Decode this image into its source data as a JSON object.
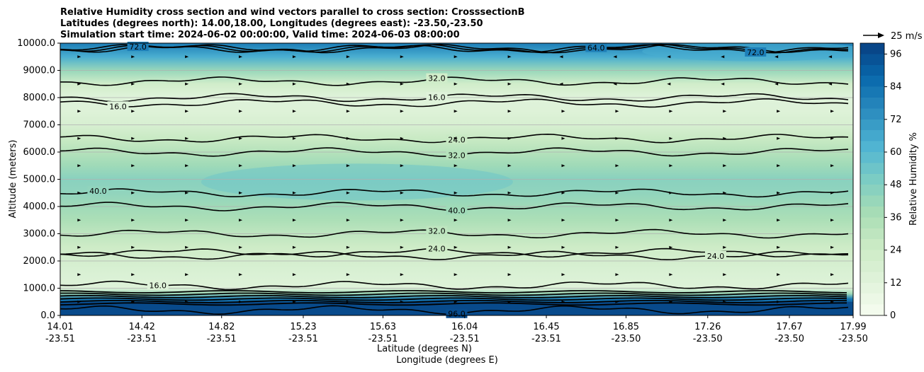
{
  "chart_data": {
    "type": "heatmap",
    "title_lines": [
      "Relative Humidity cross section and wind vectors parallel to cross section: CrosssectionB",
      "Latitudes (degrees north): 14.00,18.00, Longitudes (degrees east): -23.50,-23.50",
      "Simulation start time: 2024-06-02 00:00:00, Valid time: 2024-06-03 08:00:00"
    ],
    "ylabel": "Altitude (meters)",
    "xlabel_lat": "Latitude (degrees N)",
    "xlabel_lon": "Longitude (degrees E)",
    "y_ticks": [
      "0.0",
      "1000.0",
      "2000.0",
      "3000.0",
      "4000.0",
      "5000.0",
      "6000.0",
      "7000.0",
      "8000.0",
      "9000.0",
      "10000.0"
    ],
    "ylim": [
      0,
      10000
    ],
    "x_ticks_lat": [
      "14.01",
      "14.42",
      "14.82",
      "15.23",
      "15.63",
      "16.04",
      "16.45",
      "16.85",
      "17.26",
      "17.67",
      "17.99"
    ],
    "x_ticks_lon": [
      "-23.51",
      "-23.51",
      "-23.51",
      "-23.51",
      "-23.51",
      "-23.51",
      "-23.51",
      "-23.50",
      "-23.50",
      "-23.50",
      "-23.50"
    ],
    "xlim": [
      14.01,
      17.99
    ],
    "colorbar": {
      "label": "Relative Humidity %",
      "ticks": [
        "0",
        "12",
        "24",
        "36",
        "48",
        "60",
        "72",
        "84",
        "96"
      ],
      "range": [
        0,
        100
      ]
    },
    "quiver_key": "25 m/s",
    "rh_profile": [
      {
        "alt": 0,
        "rh": 98
      },
      {
        "alt": 300,
        "rh": 96
      },
      {
        "alt": 600,
        "rh": 82
      },
      {
        "alt": 800,
        "rh": 40
      },
      {
        "alt": 1000,
        "rh": 14
      },
      {
        "alt": 1500,
        "rh": 16
      },
      {
        "alt": 2000,
        "rh": 20
      },
      {
        "alt": 2500,
        "rh": 24
      },
      {
        "alt": 3000,
        "rh": 30
      },
      {
        "alt": 3500,
        "rh": 36
      },
      {
        "alt": 4000,
        "rh": 40
      },
      {
        "alt": 4500,
        "rh": 44
      },
      {
        "alt": 5000,
        "rh": 46
      },
      {
        "alt": 5500,
        "rh": 40
      },
      {
        "alt": 6000,
        "rh": 33
      },
      {
        "alt": 6500,
        "rh": 26
      },
      {
        "alt": 7000,
        "rh": 18
      },
      {
        "alt": 7500,
        "rh": 14
      },
      {
        "alt": 8000,
        "rh": 13
      },
      {
        "alt": 8500,
        "rh": 22
      },
      {
        "alt": 9000,
        "rh": 42
      },
      {
        "alt": 9500,
        "rh": 64
      },
      {
        "alt": 10000,
        "rh": 80
      }
    ],
    "contours": [
      {
        "label": "24.0",
        "alt": 2300,
        "label_lat": 15.9
      },
      {
        "label": "32.0",
        "alt": 3000,
        "label_lat": 15.9
      },
      {
        "label": "40.0",
        "alt": 4500,
        "label_lat": 14.2
      },
      {
        "label": "40.0",
        "alt": 4000,
        "label_lat": 16.0
      },
      {
        "label": "32.0",
        "alt": 6000,
        "label_lat": 16.0
      },
      {
        "label": "24.0",
        "alt": 6500,
        "label_lat": 16.0
      },
      {
        "label": "16.0",
        "alt": 7800,
        "label_lat": 14.3
      },
      {
        "label": "16.0",
        "alt": 8000,
        "label_lat": 15.9
      },
      {
        "label": "32.0",
        "alt": 8600,
        "label_lat": 15.9
      },
      {
        "label": "72.0",
        "alt": 9800,
        "label_lat": 14.4
      },
      {
        "label": "64.0",
        "alt": 9800,
        "label_lat": 16.7
      },
      {
        "label": "72.0",
        "alt": 9800,
        "label_lat": 17.5
      },
      {
        "label": "16.0",
        "alt": 1100,
        "label_lat": 14.5
      },
      {
        "label": "96.0",
        "alt": 200,
        "label_lat": 16.0
      },
      {
        "label": "24.0",
        "alt": 2200,
        "label_lat": 17.3
      }
    ]
  }
}
